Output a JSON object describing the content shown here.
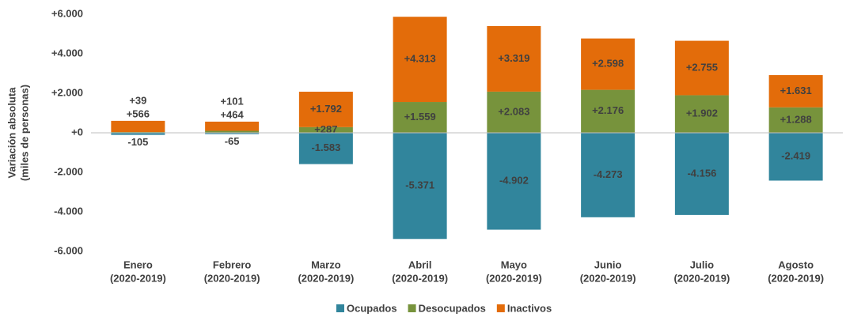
{
  "chart_data": {
    "type": "bar",
    "stacked": true,
    "y_label": [
      "Variación absoluta",
      "(miles de personas)"
    ],
    "categories": [
      [
        "Enero",
        "(2020-2019)"
      ],
      [
        "Febrero",
        "(2020-2019)"
      ],
      [
        "Marzo",
        "(2020-2019)"
      ],
      [
        "Abril",
        "(2020-2019)"
      ],
      [
        "Mayo",
        "(2020-2019)"
      ],
      [
        "Junio",
        "(2020-2019)"
      ],
      [
        "Julio",
        "(2020-2019)"
      ],
      [
        "Agosto",
        "(2020-2019)"
      ]
    ],
    "series": [
      {
        "name": "Ocupados",
        "color": "#31859c",
        "values": [
          -105,
          -65,
          -1583,
          -5371,
          -4902,
          -4273,
          -4156,
          -2419
        ],
        "value_labels": [
          "-105",
          "-65",
          "-1.583",
          "-5.371",
          "-4.902",
          "-4.273",
          "-4.156",
          "-2.419"
        ]
      },
      {
        "name": "Desocupados",
        "color": "#77933c",
        "values": [
          39,
          101,
          287,
          1559,
          2083,
          2176,
          1902,
          1288
        ],
        "value_labels": [
          "+39",
          "+101",
          "+287",
          "+1.559",
          "+2.083",
          "+2.176",
          "+1.902",
          "+1.288"
        ]
      },
      {
        "name": "Inactivos",
        "color": "#e36c0a",
        "values": [
          566,
          464,
          1792,
          4313,
          3319,
          2598,
          2755,
          1631
        ],
        "value_labels": [
          "+566",
          "+464",
          "+1.792",
          "+4.313",
          "+3.319",
          "+2.598",
          "+2.755",
          "+1.631"
        ]
      }
    ],
    "ylim": [
      -6000,
      6000
    ],
    "yticks": [
      {
        "value": -6000,
        "label": "-6.000"
      },
      {
        "value": -4000,
        "label": "-4.000"
      },
      {
        "value": -2000,
        "label": "-2.000"
      },
      {
        "value": 0,
        "label": "+0"
      },
      {
        "value": 2000,
        "label": "+2.000"
      },
      {
        "value": 4000,
        "label": "+4.000"
      },
      {
        "value": 6000,
        "label": "+6.000"
      }
    ],
    "grid": false,
    "legend": "bottom"
  }
}
